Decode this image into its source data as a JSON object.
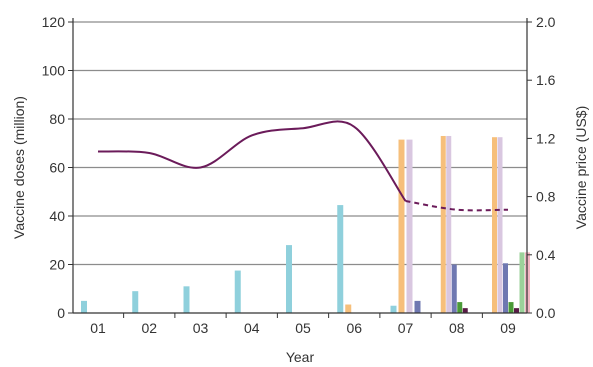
{
  "chart_data": {
    "type": "bar",
    "xlabel": "Year",
    "ylabel_left": "Vaccine doses (million)",
    "ylabel_right": "Vaccine price (US$)",
    "categories": [
      "01",
      "02",
      "03",
      "04",
      "05",
      "06",
      "07",
      "08",
      "09"
    ],
    "ylim_left": [
      0,
      120
    ],
    "ylim_right": [
      0.0,
      2.0
    ],
    "y_ticks_left": [
      "0",
      "20",
      "40",
      "60",
      "80",
      "100",
      "120"
    ],
    "y_ticks_right": [
      "0.0",
      "0.4",
      "0.8",
      "1.2",
      "1.6",
      "2.0"
    ],
    "grid": true,
    "series": [
      {
        "color": "#8fd0dc",
        "values": [
          5,
          9,
          11,
          17.5,
          28,
          44.5,
          3,
          null,
          null
        ]
      },
      {
        "color": "#f6bf7b",
        "values": [
          null,
          null,
          null,
          null,
          null,
          3.5,
          71.5,
          73,
          72.5
        ]
      },
      {
        "color": "#d9c7e0",
        "values": [
          null,
          null,
          null,
          null,
          null,
          null,
          71.5,
          73,
          72.5
        ]
      },
      {
        "color": "#6f78b1",
        "values": [
          null,
          null,
          null,
          null,
          null,
          null,
          5,
          20,
          20.5
        ]
      },
      {
        "color": "#4a9a37",
        "values": [
          null,
          null,
          null,
          null,
          null,
          null,
          null,
          4.5,
          4.5
        ]
      },
      {
        "color": "#5a1a46",
        "values": [
          null,
          null,
          null,
          null,
          null,
          null,
          null,
          2,
          2
        ]
      },
      {
        "color": "#9bd29a",
        "values": [
          null,
          null,
          null,
          null,
          null,
          null,
          null,
          null,
          25
        ]
      },
      {
        "color": "#f2b6c2",
        "values": [
          null,
          null,
          null,
          null,
          null,
          null,
          null,
          null,
          25
        ]
      }
    ],
    "price_line": {
      "color": "#6b1b5a",
      "solid": [
        [
          0,
          1.11
        ],
        [
          1,
          1.1
        ],
        [
          2,
          1.0
        ],
        [
          3,
          1.22
        ],
        [
          4,
          1.27
        ],
        [
          5,
          1.28
        ],
        [
          6,
          0.77
        ]
      ],
      "dashed": [
        [
          6,
          0.77
        ],
        [
          7,
          0.71
        ],
        [
          8,
          0.71
        ]
      ]
    }
  }
}
